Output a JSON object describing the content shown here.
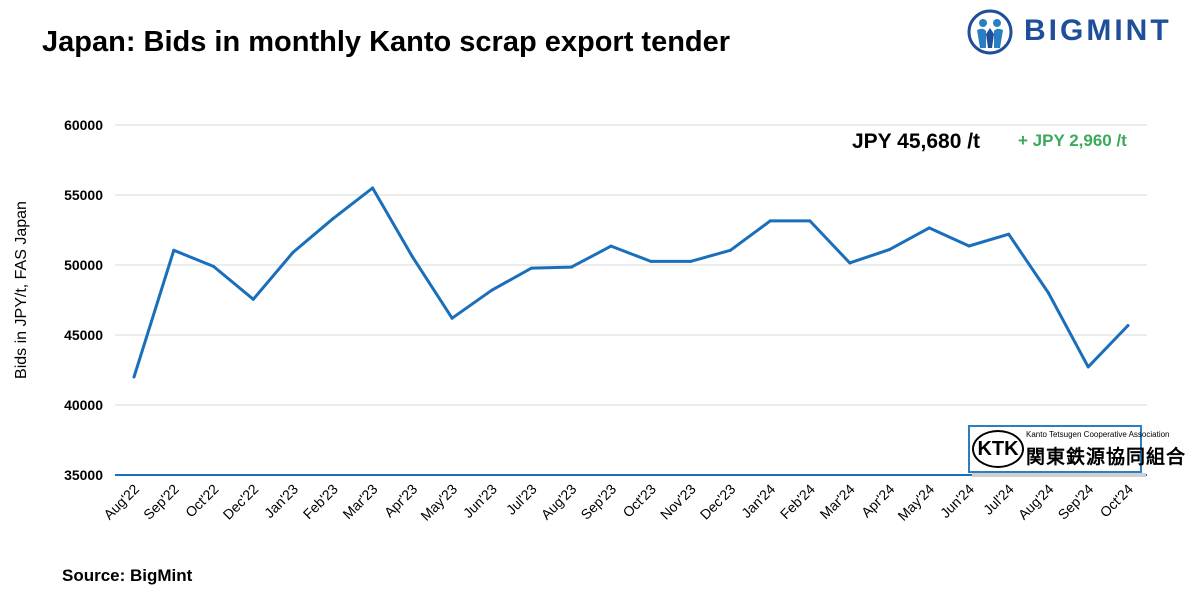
{
  "header": {
    "title": "Japan: Bids in monthly Kanto scrap export tender",
    "brand": "BIGMINT",
    "source": "Source: BigMint"
  },
  "annotation": {
    "latest": "JPY 45,680 /t",
    "change": "+ JPY 2,960 /t",
    "change_color": "#3aaa5a"
  },
  "logo_ktk": {
    "abbr": "KTK",
    "english": "Kanto Tetsugen Cooperative Association",
    "japanese": "関東鉄源協同組合"
  },
  "colors": {
    "line": "#1a6fba",
    "grid": "#d9d9d9",
    "brand": "#1f4e9a"
  },
  "chart_data": {
    "type": "line",
    "title": "Japan: Bids in monthly Kanto scrap export tender",
    "xlabel": "",
    "ylabel": "Bids in JPY/t, FAS Japan",
    "ylim": [
      35000,
      60000
    ],
    "yticks": [
      35000,
      40000,
      45000,
      50000,
      55000,
      60000
    ],
    "grid": true,
    "categories": [
      "Aug'22",
      "Sep'22",
      "Oct'22",
      "Dec'22",
      "Jan'23",
      "Feb'23",
      "Mar'23",
      "Apr'23",
      "May'23",
      "Jun'23",
      "Jul'23",
      "Aug'23",
      "Sep'23",
      "Oct'23",
      "Nov'23",
      "Dec'23",
      "Jan'24",
      "Feb'24",
      "Mar'24",
      "Apr'24",
      "May'24",
      "Jun'24",
      "Jul'24",
      "Aug'24",
      "Sep'24",
      "Oct'24"
    ],
    "series": [
      {
        "values": [
          42000,
          51050,
          49900,
          47550,
          50900,
          53300,
          55500,
          50600,
          46200,
          48200,
          49780,
          49850,
          51350,
          50260,
          50260,
          51050,
          53150,
          53150,
          50150,
          51100,
          52650,
          51360,
          52200,
          48000,
          42720,
          45680
        ]
      }
    ]
  }
}
